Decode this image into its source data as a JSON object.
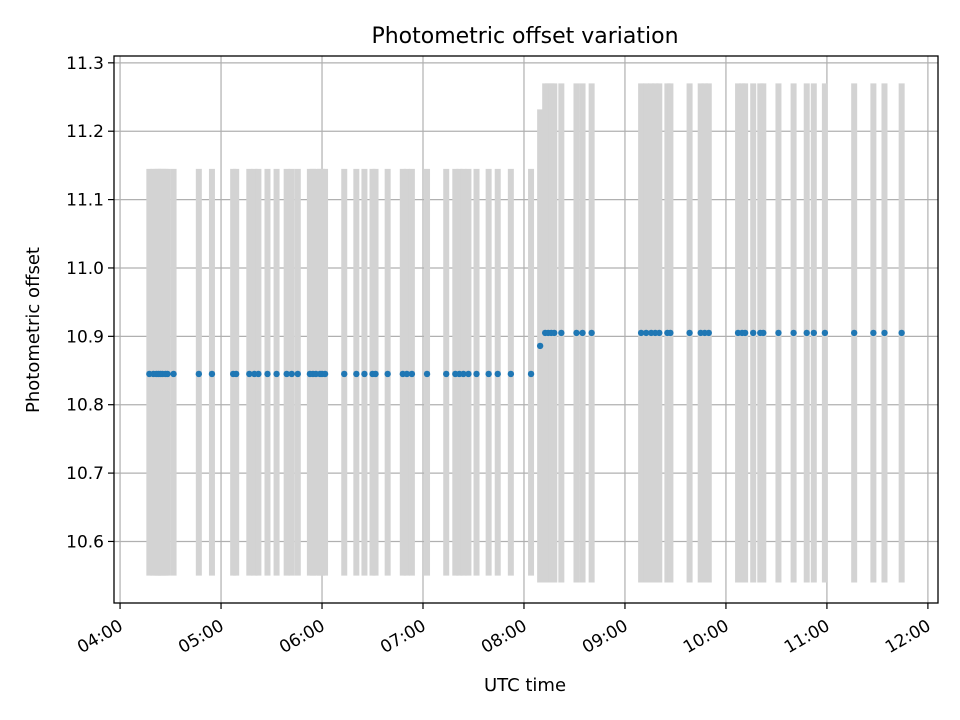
{
  "chart_data": {
    "type": "scatter",
    "title": "Photometric offset variation",
    "xlabel": "UTC time",
    "ylabel": "Photometric offset",
    "x_ticks": [
      "04:00",
      "05:00",
      "06:00",
      "07:00",
      "08:00",
      "09:00",
      "10:00",
      "11:00",
      "12:00"
    ],
    "y_ticks": [
      "10.6",
      "10.7",
      "10.8",
      "10.9",
      "11.0",
      "11.1",
      "11.2",
      "11.3"
    ],
    "xlim_hours": [
      3.94,
      12.1
    ],
    "ylim": [
      10.51,
      11.31
    ],
    "grid": true,
    "colors": {
      "points": "#1f77b4",
      "error_bars": "#d3d3d3"
    },
    "series": [
      {
        "x_hours": [
          4.29,
          4.33,
          4.36,
          4.38,
          4.4,
          4.42,
          4.45,
          4.47,
          4.53,
          4.78,
          4.91,
          5.12,
          5.15,
          5.28,
          5.33,
          5.37,
          5.46,
          5.55,
          5.65,
          5.7,
          5.76,
          5.88,
          5.91,
          5.94,
          5.98,
          6.0,
          6.03,
          6.22,
          6.34,
          6.42,
          6.5,
          6.53,
          6.65,
          6.8,
          6.84,
          6.89,
          7.04,
          7.23,
          7.32,
          7.36,
          7.4,
          7.45,
          7.53,
          7.65,
          7.74,
          7.87,
          8.07
        ],
        "y": [
          10.845,
          10.845,
          10.845,
          10.845,
          10.845,
          10.845,
          10.845,
          10.845,
          10.845,
          10.845,
          10.845,
          10.845,
          10.845,
          10.845,
          10.845,
          10.845,
          10.845,
          10.845,
          10.845,
          10.845,
          10.845,
          10.845,
          10.845,
          10.845,
          10.845,
          10.845,
          10.845,
          10.845,
          10.845,
          10.845,
          10.845,
          10.845,
          10.845,
          10.845,
          10.845,
          10.845,
          10.845,
          10.845,
          10.845,
          10.845,
          10.845,
          10.845,
          10.845,
          10.845,
          10.845,
          10.845,
          10.845
        ],
        "yerr_low": [
          10.55,
          10.55,
          10.55,
          10.55,
          10.55,
          10.55,
          10.55,
          10.55,
          10.55,
          10.55,
          10.55,
          10.55,
          10.55,
          10.55,
          10.55,
          10.55,
          10.55,
          10.55,
          10.55,
          10.55,
          10.55,
          10.55,
          10.55,
          10.55,
          10.55,
          10.55,
          10.55,
          10.55,
          10.55,
          10.55,
          10.55,
          10.55,
          10.55,
          10.55,
          10.55,
          10.55,
          10.55,
          10.55,
          10.55,
          10.55,
          10.55,
          10.55,
          10.55,
          10.55,
          10.55,
          10.55,
          10.55
        ],
        "yerr_high": [
          11.145,
          11.145,
          11.145,
          11.145,
          11.145,
          11.145,
          11.145,
          11.145,
          11.145,
          11.145,
          11.145,
          11.145,
          11.145,
          11.145,
          11.145,
          11.145,
          11.145,
          11.145,
          11.145,
          11.145,
          11.145,
          11.145,
          11.145,
          11.145,
          11.145,
          11.145,
          11.145,
          11.145,
          11.145,
          11.145,
          11.145,
          11.145,
          11.145,
          11.145,
          11.145,
          11.145,
          11.145,
          11.145,
          11.145,
          11.145,
          11.145,
          11.145,
          11.145,
          11.145,
          11.145,
          11.145,
          11.145
        ]
      },
      {
        "x_hours": [
          8.16
        ],
        "y": [
          10.886
        ],
        "yerr_low": [
          10.54
        ],
        "yerr_high": [
          11.232
        ]
      },
      {
        "x_hours": [
          8.21,
          8.24,
          8.27,
          8.3,
          8.37,
          8.52,
          8.58,
          8.67,
          9.16,
          9.21,
          9.26,
          9.3,
          9.34,
          9.42,
          9.45,
          9.64,
          9.75,
          9.79,
          9.83,
          10.12,
          10.16,
          10.19,
          10.27,
          10.34,
          10.37,
          10.52,
          10.67,
          10.8,
          10.87,
          10.98,
          11.27,
          11.46,
          11.57,
          11.74
        ],
        "y": [
          10.905,
          10.905,
          10.905,
          10.905,
          10.905,
          10.905,
          10.905,
          10.905,
          10.905,
          10.905,
          10.905,
          10.905,
          10.905,
          10.905,
          10.905,
          10.905,
          10.905,
          10.905,
          10.905,
          10.905,
          10.905,
          10.905,
          10.905,
          10.905,
          10.905,
          10.905,
          10.905,
          10.905,
          10.905,
          10.905,
          10.905,
          10.905,
          10.905,
          10.905
        ],
        "yerr_low": [
          10.54,
          10.54,
          10.54,
          10.54,
          10.54,
          10.54,
          10.54,
          10.54,
          10.54,
          10.54,
          10.54,
          10.54,
          10.54,
          10.54,
          10.54,
          10.54,
          10.54,
          10.54,
          10.54,
          10.54,
          10.54,
          10.54,
          10.54,
          10.54,
          10.54,
          10.54,
          10.54,
          10.54,
          10.54,
          10.54,
          10.54,
          10.54,
          10.54,
          10.54
        ],
        "yerr_high": [
          11.27,
          11.27,
          11.27,
          11.27,
          11.27,
          11.27,
          11.27,
          11.27,
          11.27,
          11.27,
          11.27,
          11.27,
          11.27,
          11.27,
          11.27,
          11.27,
          11.27,
          11.27,
          11.27,
          11.27,
          11.27,
          11.27,
          11.27,
          11.27,
          11.27,
          11.27,
          11.27,
          11.27,
          11.27,
          11.27,
          11.27,
          11.27,
          11.27,
          11.27
        ]
      }
    ]
  }
}
